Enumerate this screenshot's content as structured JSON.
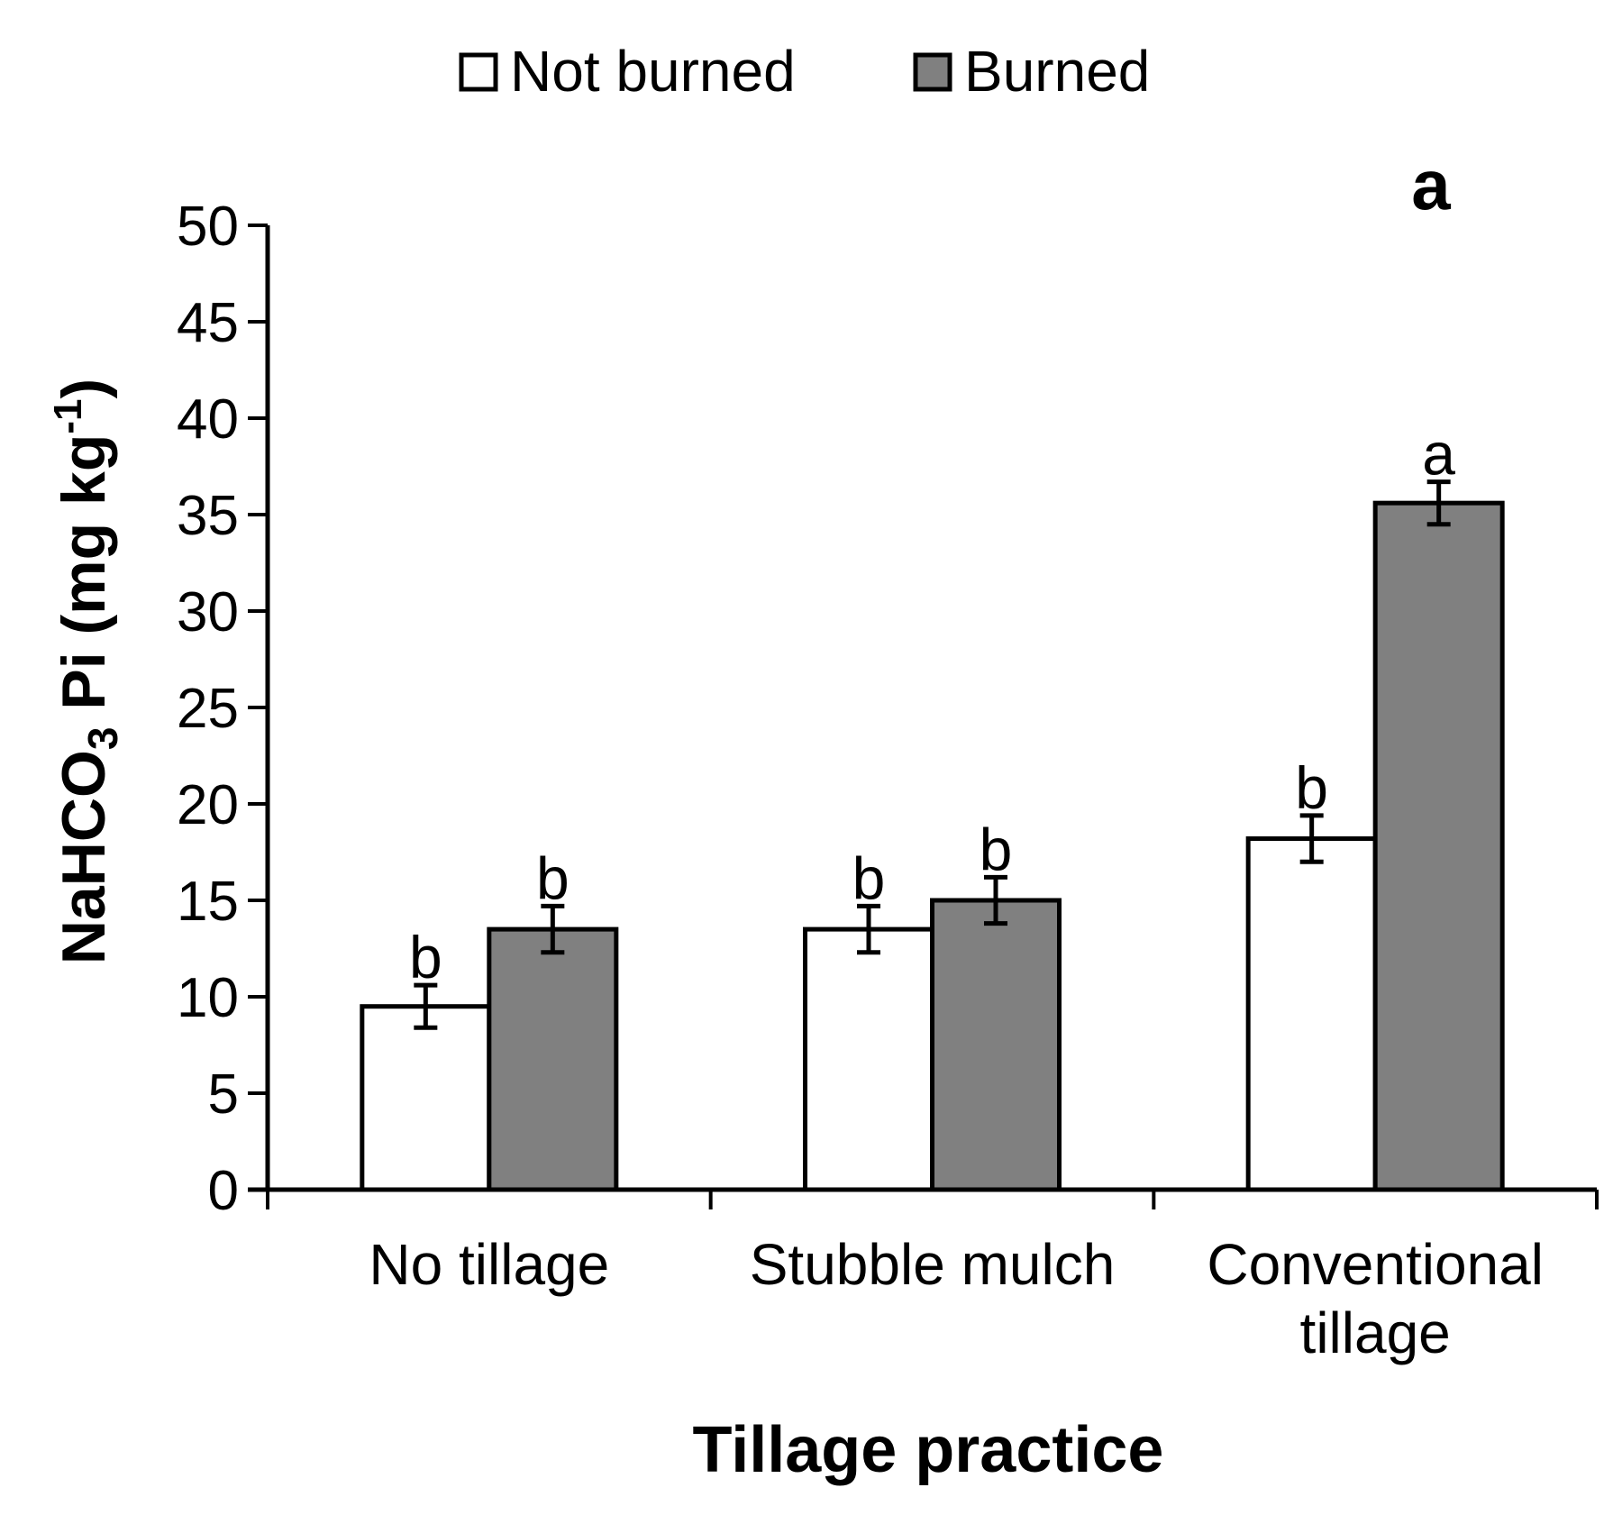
{
  "chart_data": {
    "type": "bar",
    "panel_label": "a",
    "xlabel": "Tillage practice",
    "ylabel": {
      "main": "NaHCO",
      "sub": "3",
      "rest": " Pi (mg kg",
      "sup": "-1",
      "end": ")"
    },
    "ylim": [
      0,
      50
    ],
    "yticks": [
      "0",
      "5",
      "10",
      "15",
      "20",
      "25",
      "30",
      "35",
      "40",
      "45",
      "50"
    ],
    "categories": [
      {
        "lines": [
          "No tillage"
        ]
      },
      {
        "lines": [
          "Stubble mulch"
        ]
      },
      {
        "lines": [
          "Conventional",
          "tillage"
        ]
      }
    ],
    "series": [
      {
        "name": "Not burned",
        "color": "#ffffff",
        "values": [
          9.5,
          13.5,
          18.2
        ],
        "errors": [
          1.1,
          1.2,
          1.2
        ],
        "letters": [
          "b",
          "b",
          "b"
        ]
      },
      {
        "name": "Burned",
        "color": "#808080",
        "values": [
          13.5,
          15.0,
          35.6
        ],
        "errors": [
          1.2,
          1.2,
          1.1
        ],
        "letters": [
          "b",
          "b",
          "a"
        ]
      }
    ]
  }
}
